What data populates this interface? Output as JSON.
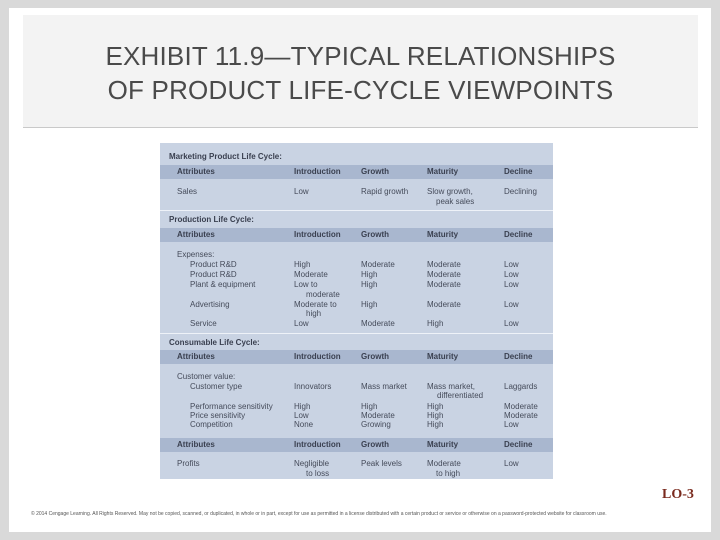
{
  "title": {
    "line1": "EXHIBIT 11.9—TYPICAL RELATIONSHIPS",
    "line2": "OF PRODUCT LIFE-CYCLE VIEWPOINTS"
  },
  "exhibit": {
    "marketing": {
      "section_title": "Marketing Product Life Cycle:",
      "headers": [
        "Attributes",
        "Introduction",
        "Growth",
        "Maturity",
        "Decline"
      ],
      "rows": [
        {
          "attribute": "Sales",
          "introduction": "Low",
          "growth": "Rapid growth",
          "maturity_1": "Slow growth,",
          "maturity_2": "peak sales",
          "decline": "Declining"
        }
      ]
    },
    "production": {
      "section_title": "Production Life Cycle:",
      "headers": [
        "Attributes",
        "Introduction",
        "Growth",
        "Maturity",
        "Decline"
      ],
      "group_label": "Expenses:",
      "rows": [
        {
          "attribute": "Product R&D",
          "introduction": "High",
          "growth": "Moderate",
          "maturity": "Moderate",
          "decline": "Low"
        },
        {
          "attribute": "Product R&D",
          "introduction": "Moderate",
          "growth": "High",
          "maturity": "Moderate",
          "decline": "Low"
        },
        {
          "attribute": "Plant & equipment",
          "introduction": "Low to",
          "introduction_2": "moderate",
          "growth": "High",
          "maturity": "Moderate",
          "decline": "Low"
        },
        {
          "attribute": "Advertising",
          "introduction": "Moderate to",
          "introduction_2": "high",
          "growth": "High",
          "maturity": "Moderate",
          "decline": "Low"
        },
        {
          "attribute": "Service",
          "introduction": "Low",
          "growth": "Moderate",
          "maturity": "High",
          "decline": "Low"
        }
      ]
    },
    "consumable": {
      "section_title": "Consumable Life Cycle:",
      "headers": [
        "Attributes",
        "Introduction",
        "Growth",
        "Maturity",
        "Decline"
      ],
      "group_label": "Customer value:",
      "rows": [
        {
          "attribute": "Customer type",
          "introduction": "Innovators",
          "growth": "Mass market",
          "maturity": "Mass market,",
          "maturity_2": "differentiated",
          "decline": "Laggards"
        },
        {
          "attribute": "Performance sensitivity",
          "introduction": "High",
          "growth": "High",
          "maturity": "High",
          "decline": "Moderate"
        },
        {
          "attribute": "Price sensitivity",
          "introduction": "Low",
          "growth": "Moderate",
          "maturity": "High",
          "decline": "Moderate"
        },
        {
          "attribute": "Competition",
          "introduction": "None",
          "growth": "Growing",
          "maturity": "High",
          "decline": "Low"
        }
      ]
    },
    "profits": {
      "headers": [
        "Attributes",
        "Introduction",
        "Growth",
        "Maturity",
        "Decline"
      ],
      "row": {
        "attribute": "Profits",
        "introduction": "Negligible",
        "introduction_2": "to loss",
        "growth": "Peak levels",
        "maturity": "Moderate",
        "maturity_2": "to high",
        "decline": "Low"
      }
    }
  },
  "lo_label": "LO-3",
  "copyright": "© 2014 Cengage Learning. All Rights Reserved. May not be copied, scanned, or duplicated, in whole or in part, except for use as permitted in a license distributed with a certain product or service or otherwise on a password-protected website for classroom use.",
  "colors": {
    "band": "#a9b7cf",
    "panel": "#c9d3e3",
    "lo_label": "#7a2a1e"
  }
}
